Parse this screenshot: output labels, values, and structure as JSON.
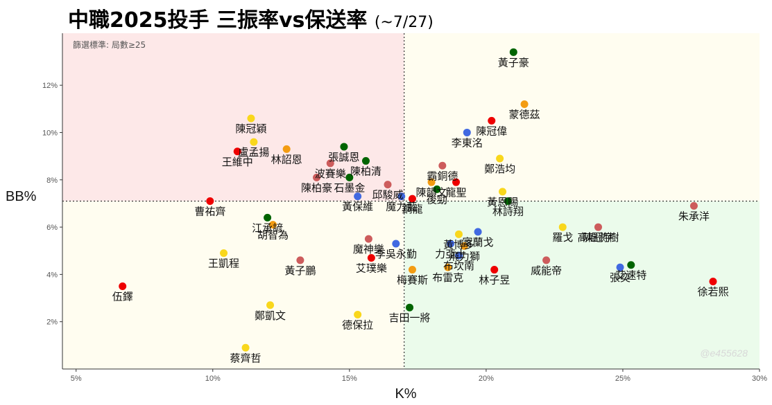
{
  "title": "中職2025投手 三振率vs保送率",
  "subtitle": "(~7/27)",
  "filter_note": "篩選標準: 局數≥25",
  "watermark": "@e455628",
  "chart_data": {
    "type": "scatter",
    "xlabel": "K%",
    "ylabel": "BB%",
    "xlim": [
      4.5,
      30
    ],
    "ylim": [
      0,
      14.2
    ],
    "xticks": [
      5,
      10,
      15,
      20,
      25,
      30
    ],
    "yticks": [
      2,
      4,
      6,
      8,
      10,
      12
    ],
    "x_ref": 17,
    "y_ref": 7.1,
    "quadrant_colors": {
      "top_left": "#fde8e8",
      "top_right": "#fffdf0",
      "bottom_left": "#fffdf0",
      "bottom_right": "#ebfbeb"
    },
    "team_colors": {
      "orange": "#f39c12",
      "red": "#ee0000",
      "green": "#006400",
      "blue": "#4169e1",
      "yellow": "#f9d71c",
      "rose": "#cd5c5c"
    },
    "points": [
      {
        "name": "黃子豪",
        "x": 21.0,
        "y": 13.4,
        "c": "green"
      },
      {
        "name": "蒙德茲",
        "x": 21.4,
        "y": 11.2,
        "c": "orange"
      },
      {
        "name": "陳冠偉",
        "x": 20.2,
        "y": 10.5,
        "c": "red"
      },
      {
        "name": "李東洺",
        "x": 19.3,
        "y": 10.0,
        "c": "blue"
      },
      {
        "name": "陳冠穎",
        "x": 11.4,
        "y": 10.6,
        "c": "yellow"
      },
      {
        "name": "盧孟揚",
        "x": 11.5,
        "y": 9.6,
        "c": "yellow"
      },
      {
        "name": "張誠恩",
        "x": 14.8,
        "y": 9.4,
        "c": "green"
      },
      {
        "name": "林詔恩",
        "x": 12.7,
        "y": 9.3,
        "c": "orange"
      },
      {
        "name": "王維中",
        "x": 10.9,
        "y": 9.2,
        "c": "red"
      },
      {
        "name": "陳柏清",
        "x": 15.6,
        "y": 8.8,
        "c": "green"
      },
      {
        "name": "鄭浩均",
        "x": 20.5,
        "y": 8.9,
        "c": "yellow"
      },
      {
        "name": "波賽樂",
        "x": 14.3,
        "y": 8.7,
        "c": "rose"
      },
      {
        "name": "霸銅德",
        "x": 18.4,
        "y": 8.6,
        "c": "rose"
      },
      {
        "name": "陳柏豪",
        "x": 13.8,
        "y": 8.1,
        "c": "rose"
      },
      {
        "name": "石墨金",
        "x": 15.0,
        "y": 8.1,
        "c": "green"
      },
      {
        "name": "邱駿威",
        "x": 16.4,
        "y": 7.8,
        "c": "rose"
      },
      {
        "name": "陳韻文",
        "x": 18.0,
        "y": 7.9,
        "c": "orange"
      },
      {
        "name": "龍聖",
        "x": 18.9,
        "y": 7.9,
        "c": "red"
      },
      {
        "name": "後勁",
        "x": 18.2,
        "y": 7.6,
        "c": "green"
      },
      {
        "name": "黃恩賜",
        "x": 20.6,
        "y": 7.5,
        "c": "yellow"
      },
      {
        "name": "黃保維",
        "x": 15.3,
        "y": 7.3,
        "c": "blue"
      },
      {
        "name": "魔力藍",
        "x": 16.9,
        "y": 7.3,
        "c": "blue"
      },
      {
        "name": "鋼龍",
        "x": 17.3,
        "y": 7.2,
        "c": "red"
      },
      {
        "name": "林詩翔",
        "x": 20.8,
        "y": 7.1,
        "c": "green"
      },
      {
        "name": "曹祐齊",
        "x": 9.9,
        "y": 7.1,
        "c": "red"
      },
      {
        "name": "朱承洋",
        "x": 27.6,
        "y": 6.9,
        "c": "rose"
      },
      {
        "name": "江承諺",
        "x": 12.0,
        "y": 6.4,
        "c": "green"
      },
      {
        "name": "胡智為",
        "x": 12.2,
        "y": 6.1,
        "c": "orange"
      },
      {
        "name": "羅戈",
        "x": 22.8,
        "y": 6.0,
        "c": "yellow"
      },
      {
        "name": "陳冠宇",
        "x": 24.1,
        "y": 6.0,
        "c": "rose"
      },
      {
        "name": "富蘭戈",
        "x": 19.7,
        "y": 5.8,
        "c": "blue"
      },
      {
        "name": "黃博多",
        "x": 19.0,
        "y": 5.7,
        "c": "yellow"
      },
      {
        "name": "高塭將樹",
        "x": 24.1,
        "y": 5.95,
        "c": "rose",
        "hidden_dot": true
      },
      {
        "name": "魔神樂",
        "x": 15.7,
        "y": 5.5,
        "c": "rose"
      },
      {
        "name": "李吳永勤",
        "x": 16.7,
        "y": 5.3,
        "c": "blue"
      },
      {
        "name": "力亞士",
        "x": 18.7,
        "y": 5.3,
        "c": "blue"
      },
      {
        "name": "飛力獅",
        "x": 19.2,
        "y": 5.2,
        "c": "orange"
      },
      {
        "name": "王凱程",
        "x": 10.4,
        "y": 4.9,
        "c": "yellow"
      },
      {
        "name": "布坎南",
        "x": 19.0,
        "y": 4.8,
        "c": "blue"
      },
      {
        "name": "艾璞樂",
        "x": 15.8,
        "y": 4.7,
        "c": "red"
      },
      {
        "name": "黃子鵬",
        "x": 13.2,
        "y": 4.6,
        "c": "rose"
      },
      {
        "name": "威能帝",
        "x": 22.2,
        "y": 4.6,
        "c": "rose"
      },
      {
        "name": "艾速特",
        "x": 25.3,
        "y": 4.4,
        "c": "green"
      },
      {
        "name": "張奕",
        "x": 24.9,
        "y": 4.3,
        "c": "blue"
      },
      {
        "name": "梅賽斯",
        "x": 17.3,
        "y": 4.2,
        "c": "orange"
      },
      {
        "name": "布雷克",
        "x": 18.6,
        "y": 4.3,
        "c": "orange"
      },
      {
        "name": "林子昱",
        "x": 20.3,
        "y": 4.2,
        "c": "red"
      },
      {
        "name": "伍鐸",
        "x": 6.7,
        "y": 3.5,
        "c": "red"
      },
      {
        "name": "徐若熙",
        "x": 28.3,
        "y": 3.7,
        "c": "red"
      },
      {
        "name": "鄭凱文",
        "x": 12.1,
        "y": 2.7,
        "c": "yellow"
      },
      {
        "name": "吉田一將",
        "x": 17.2,
        "y": 2.6,
        "c": "green"
      },
      {
        "name": "德保拉",
        "x": 15.3,
        "y": 2.3,
        "c": "yellow"
      },
      {
        "name": "蔡齊哲",
        "x": 11.2,
        "y": 0.9,
        "c": "yellow"
      }
    ]
  }
}
